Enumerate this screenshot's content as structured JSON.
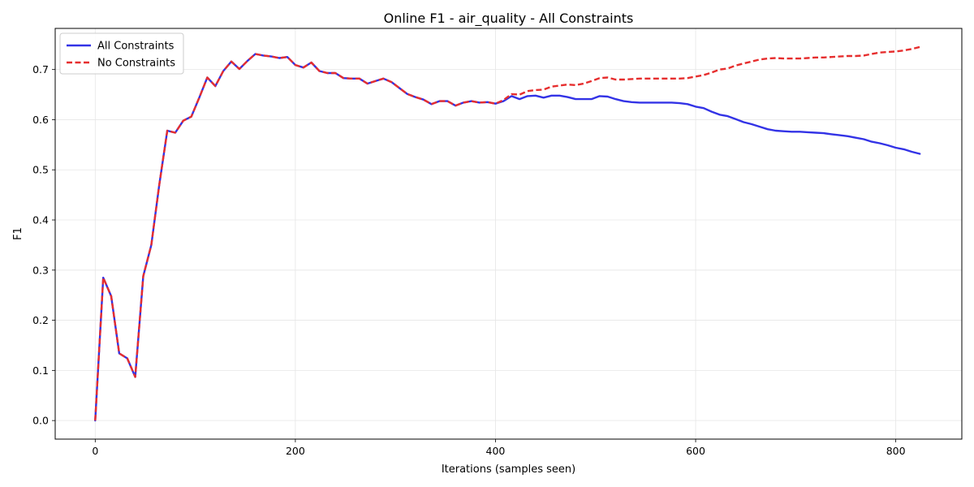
{
  "chart_data": {
    "type": "line",
    "title": "Online F1 - air_quality - All Constraints",
    "xlabel": "Iterations (samples seen)",
    "ylabel": "F1",
    "xlim": [
      -40,
      866
    ],
    "ylim": [
      -0.037,
      0.782
    ],
    "xticks": [
      0,
      200,
      400,
      600,
      800
    ],
    "xtick_labels": [
      "0",
      "200",
      "400",
      "600",
      "800"
    ],
    "yticks": [
      0.0,
      0.1,
      0.2,
      0.3,
      0.4,
      0.5,
      0.6,
      0.7
    ],
    "ytick_labels": [
      "0.0",
      "0.1",
      "0.2",
      "0.3",
      "0.4",
      "0.5",
      "0.6",
      "0.7"
    ],
    "grid": true,
    "legend_position": "top-left",
    "series": [
      {
        "name": "All Constraints",
        "color": "#3333e6",
        "style": "solid",
        "x": [
          0,
          8,
          16,
          24,
          32,
          40,
          48,
          56,
          64,
          72,
          80,
          88,
          96,
          104,
          112,
          120,
          128,
          136,
          144,
          152,
          160,
          168,
          176,
          184,
          192,
          200,
          208,
          216,
          224,
          232,
          240,
          248,
          256,
          264,
          272,
          280,
          288,
          296,
          304,
          312,
          320,
          328,
          336,
          344,
          352,
          360,
          368,
          376,
          384,
          392,
          400,
          408,
          416,
          424,
          432,
          440,
          448,
          456,
          464,
          472,
          480,
          488,
          496,
          504,
          512,
          520,
          528,
          536,
          544,
          552,
          560,
          568,
          576,
          584,
          592,
          600,
          608,
          616,
          624,
          632,
          640,
          648,
          656,
          664,
          672,
          680,
          688,
          696,
          704,
          712,
          720,
          728,
          736,
          744,
          752,
          760,
          768,
          776,
          784,
          792,
          800,
          808,
          816,
          824
        ],
        "y": [
          0.0,
          0.285,
          0.248,
          0.134,
          0.124,
          0.087,
          0.288,
          0.35,
          0.47,
          0.578,
          0.574,
          0.598,
          0.606,
          0.644,
          0.684,
          0.667,
          0.697,
          0.716,
          0.701,
          0.717,
          0.731,
          0.728,
          0.726,
          0.723,
          0.725,
          0.709,
          0.704,
          0.714,
          0.697,
          0.693,
          0.693,
          0.683,
          0.682,
          0.682,
          0.672,
          0.677,
          0.682,
          0.675,
          0.663,
          0.651,
          0.645,
          0.64,
          0.631,
          0.637,
          0.637,
          0.628,
          0.634,
          0.637,
          0.634,
          0.635,
          0.632,
          0.637,
          0.647,
          0.641,
          0.647,
          0.648,
          0.644,
          0.648,
          0.648,
          0.645,
          0.641,
          0.641,
          0.641,
          0.647,
          0.646,
          0.641,
          0.637,
          0.635,
          0.634,
          0.634,
          0.634,
          0.634,
          0.634,
          0.633,
          0.631,
          0.626,
          0.623,
          0.616,
          0.61,
          0.607,
          0.601,
          0.595,
          0.591,
          0.586,
          0.581,
          0.578,
          0.577,
          0.576,
          0.576,
          0.575,
          0.574,
          0.573,
          0.571,
          0.569,
          0.567,
          0.564,
          0.561,
          0.556,
          0.553,
          0.549,
          0.544,
          0.541,
          0.536,
          0.532
        ]
      },
      {
        "name": "No Constraints",
        "color": "#e62e2e",
        "style": "dashed",
        "x": [
          0,
          8,
          16,
          24,
          32,
          40,
          48,
          56,
          64,
          72,
          80,
          88,
          96,
          104,
          112,
          120,
          128,
          136,
          144,
          152,
          160,
          168,
          176,
          184,
          192,
          200,
          208,
          216,
          224,
          232,
          240,
          248,
          256,
          264,
          272,
          280,
          288,
          296,
          304,
          312,
          320,
          328,
          336,
          344,
          352,
          360,
          368,
          376,
          384,
          392,
          400,
          408,
          416,
          424,
          432,
          440,
          448,
          456,
          464,
          472,
          480,
          488,
          496,
          504,
          512,
          520,
          528,
          536,
          544,
          552,
          560,
          568,
          576,
          584,
          592,
          600,
          608,
          616,
          624,
          632,
          640,
          648,
          656,
          664,
          672,
          680,
          688,
          696,
          704,
          712,
          720,
          728,
          736,
          744,
          752,
          760,
          768,
          776,
          784,
          792,
          800,
          808,
          816,
          824
        ],
        "y": [
          0.0,
          0.285,
          0.248,
          0.134,
          0.124,
          0.087,
          0.288,
          0.35,
          0.47,
          0.578,
          0.574,
          0.598,
          0.606,
          0.644,
          0.684,
          0.667,
          0.697,
          0.716,
          0.701,
          0.717,
          0.731,
          0.728,
          0.726,
          0.723,
          0.725,
          0.709,
          0.704,
          0.714,
          0.697,
          0.693,
          0.693,
          0.683,
          0.682,
          0.682,
          0.672,
          0.677,
          0.682,
          0.675,
          0.663,
          0.651,
          0.645,
          0.64,
          0.631,
          0.637,
          0.637,
          0.628,
          0.634,
          0.637,
          0.634,
          0.635,
          0.632,
          0.639,
          0.651,
          0.65,
          0.657,
          0.659,
          0.66,
          0.666,
          0.668,
          0.67,
          0.669,
          0.672,
          0.677,
          0.683,
          0.684,
          0.68,
          0.68,
          0.681,
          0.682,
          0.682,
          0.682,
          0.682,
          0.682,
          0.682,
          0.683,
          0.686,
          0.689,
          0.694,
          0.7,
          0.702,
          0.708,
          0.712,
          0.716,
          0.72,
          0.722,
          0.723,
          0.722,
          0.722,
          0.722,
          0.723,
          0.724,
          0.724,
          0.725,
          0.726,
          0.727,
          0.727,
          0.728,
          0.731,
          0.734,
          0.735,
          0.736,
          0.738,
          0.741,
          0.745
        ]
      }
    ]
  }
}
